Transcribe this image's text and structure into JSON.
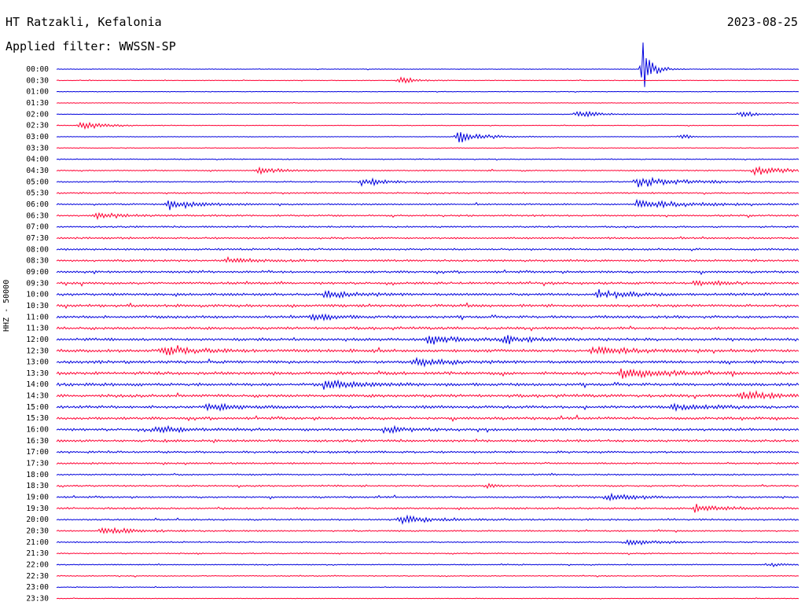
{
  "header": {
    "station": "HT Ratzakli, Kefalonia",
    "filter": "Applied filter: WWSSN-SP",
    "date": "2023-08-25"
  },
  "chart_data": {
    "type": "line",
    "title": "HT Ratzakli, Kefalonia",
    "subtitle": "Applied filter: WWSSN-SP",
    "date": "2023-08-25",
    "ylabel": "HHZ - 50000",
    "trace_colors": [
      "#0000dd",
      "#ff0033"
    ],
    "rows": [
      "00:00",
      "00:30",
      "01:00",
      "01:30",
      "02:00",
      "02:30",
      "03:00",
      "03:30",
      "04:00",
      "04:30",
      "05:00",
      "05:30",
      "06:00",
      "06:30",
      "07:00",
      "07:30",
      "08:00",
      "08:30",
      "09:00",
      "09:30",
      "10:00",
      "10:30",
      "11:00",
      "11:30",
      "12:00",
      "12:30",
      "13:00",
      "13:30",
      "14:00",
      "14:30",
      "15:00",
      "15:30",
      "16:00",
      "16:30",
      "17:00",
      "17:30",
      "18:00",
      "18:30",
      "19:00",
      "19:30",
      "20:00",
      "20:30",
      "21:00",
      "21:30",
      "22:00",
      "22:30",
      "23:00",
      "23:30"
    ],
    "row_noise_level": [
      0.12,
      0.12,
      0.12,
      0.12,
      0.12,
      0.12,
      0.12,
      0.15,
      0.18,
      0.22,
      0.25,
      0.28,
      0.3,
      0.32,
      0.32,
      0.35,
      0.38,
      0.4,
      0.42,
      0.45,
      0.48,
      0.5,
      0.5,
      0.5,
      0.52,
      0.55,
      0.55,
      0.55,
      0.55,
      0.55,
      0.52,
      0.5,
      0.48,
      0.45,
      0.4,
      0.35,
      0.3,
      0.3,
      0.32,
      0.35,
      0.3,
      0.28,
      0.25,
      0.22,
      0.2,
      0.18,
      0.15,
      0.12
    ],
    "events": [
      {
        "row": "00:00",
        "t": 0.79,
        "amp": 10,
        "dur": 0.012
      },
      {
        "row": "00:30",
        "t": 0.46,
        "amp": 1.6,
        "dur": 0.02
      },
      {
        "row": "02:00",
        "t": 0.7,
        "amp": 1.5,
        "dur": 0.03
      },
      {
        "row": "02:00",
        "t": 0.92,
        "amp": 1.4,
        "dur": 0.02
      },
      {
        "row": "02:30",
        "t": 0.03,
        "amp": 1.8,
        "dur": 0.03
      },
      {
        "row": "03:00",
        "t": 0.54,
        "amp": 2.2,
        "dur": 0.035
      },
      {
        "row": "03:00",
        "t": 0.84,
        "amp": 1.4,
        "dur": 0.01
      },
      {
        "row": "04:30",
        "t": 0.27,
        "amp": 1.6,
        "dur": 0.03
      },
      {
        "row": "04:30",
        "t": 0.94,
        "amp": 1.8,
        "dur": 0.04
      },
      {
        "row": "05:00",
        "t": 0.41,
        "amp": 1.8,
        "dur": 0.03
      },
      {
        "row": "05:00",
        "t": 0.78,
        "amp": 2,
        "dur": 0.06
      },
      {
        "row": "06:00",
        "t": 0.15,
        "amp": 2,
        "dur": 0.04
      },
      {
        "row": "06:00",
        "t": 0.78,
        "amp": 2,
        "dur": 0.06
      },
      {
        "row": "06:30",
        "t": 0.05,
        "amp": 1.4,
        "dur": 0.03
      },
      {
        "row": "08:30",
        "t": 0.23,
        "amp": 1.5,
        "dur": 0.03
      },
      {
        "row": "09:30",
        "t": 0.86,
        "amp": 1.4,
        "dur": 0.03
      },
      {
        "row": "10:00",
        "t": 0.36,
        "amp": 1.6,
        "dur": 0.04
      },
      {
        "row": "10:00",
        "t": 0.73,
        "amp": 1.6,
        "dur": 0.04
      },
      {
        "row": "11:00",
        "t": 0.34,
        "amp": 1.6,
        "dur": 0.03
      },
      {
        "row": "12:00",
        "t": 0.5,
        "amp": 1.9,
        "dur": 0.03
      },
      {
        "row": "12:00",
        "t": 0.6,
        "amp": 1.9,
        "dur": 0.03
      },
      {
        "row": "12:30",
        "t": 0.14,
        "amp": 1.6,
        "dur": 0.05
      },
      {
        "row": "12:30",
        "t": 0.72,
        "amp": 1.8,
        "dur": 0.05
      },
      {
        "row": "13:00",
        "t": 0.48,
        "amp": 1.8,
        "dur": 0.04
      },
      {
        "row": "13:30",
        "t": 0.76,
        "amp": 1.8,
        "dur": 0.06
      },
      {
        "row": "14:00",
        "t": 0.36,
        "amp": 1.8,
        "dur": 0.05
      },
      {
        "row": "14:30",
        "t": 0.92,
        "amp": 1.7,
        "dur": 0.05
      },
      {
        "row": "15:00",
        "t": 0.2,
        "amp": 1.5,
        "dur": 0.04
      },
      {
        "row": "15:00",
        "t": 0.83,
        "amp": 1.4,
        "dur": 0.04
      },
      {
        "row": "16:00",
        "t": 0.13,
        "amp": 1.5,
        "dur": 0.04
      },
      {
        "row": "16:00",
        "t": 0.44,
        "amp": 1.5,
        "dur": 0.03
      },
      {
        "row": "18:30",
        "t": 0.58,
        "amp": 1.3,
        "dur": 0.01
      },
      {
        "row": "19:00",
        "t": 0.74,
        "amp": 1.7,
        "dur": 0.04
      },
      {
        "row": "19:30",
        "t": 0.86,
        "amp": 1.6,
        "dur": 0.04
      },
      {
        "row": "20:00",
        "t": 0.46,
        "amp": 1.7,
        "dur": 0.04
      },
      {
        "row": "20:30",
        "t": 0.06,
        "amp": 1.7,
        "dur": 0.04
      },
      {
        "row": "21:00",
        "t": 0.77,
        "amp": 1.7,
        "dur": 0.03
      },
      {
        "row": "22:00",
        "t": 0.96,
        "amp": 0.8,
        "dur": 0.02
      }
    ]
  }
}
